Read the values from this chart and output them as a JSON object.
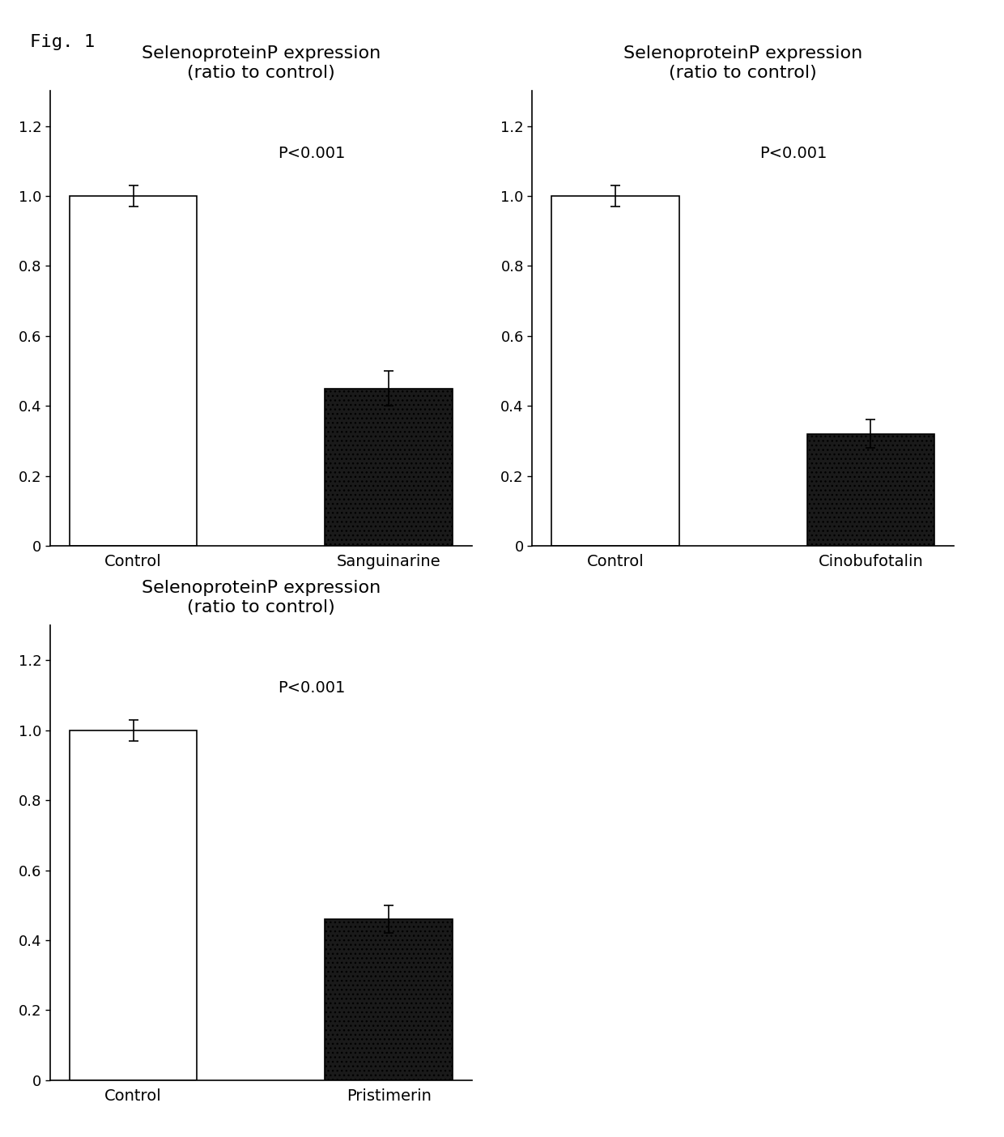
{
  "fig_label": "Fig. 1",
  "charts": [
    {
      "title": "SelenoproteinP expression\n(ratio to control)",
      "categories": [
        "Control",
        "Sanguinarine"
      ],
      "values": [
        1.0,
        0.45
      ],
      "errors": [
        0.03,
        0.05
      ],
      "bar_colors": [
        "#ffffff",
        "#1a1a1a"
      ],
      "bar_edgecolors": [
        "#000000",
        "#000000"
      ],
      "pvalue": "P<0.001",
      "ylim": [
        0,
        1.3
      ],
      "yticks": [
        0,
        0.2,
        0.4,
        0.6,
        0.8,
        1.0,
        1.2
      ]
    },
    {
      "title": "SelenoproteinP expression\n(ratio to control)",
      "categories": [
        "Control",
        "Cinobufotalin"
      ],
      "values": [
        1.0,
        0.32
      ],
      "errors": [
        0.03,
        0.04
      ],
      "bar_colors": [
        "#ffffff",
        "#1a1a1a"
      ],
      "bar_edgecolors": [
        "#000000",
        "#000000"
      ],
      "pvalue": "P<0.001",
      "ylim": [
        0,
        1.3
      ],
      "yticks": [
        0,
        0.2,
        0.4,
        0.6,
        0.8,
        1.0,
        1.2
      ]
    },
    {
      "title": "SelenoproteinP expression\n(ratio to control)",
      "categories": [
        "Control",
        "Pristimerin"
      ],
      "values": [
        1.0,
        0.46
      ],
      "errors": [
        0.03,
        0.04
      ],
      "bar_colors": [
        "#ffffff",
        "#1a1a1a"
      ],
      "bar_edgecolors": [
        "#000000",
        "#000000"
      ],
      "pvalue": "P<0.001",
      "ylim": [
        0,
        1.3
      ],
      "yticks": [
        0,
        0.2,
        0.4,
        0.6,
        0.8,
        1.0,
        1.2
      ]
    }
  ],
  "background_color": "#ffffff",
  "title_fontsize": 16,
  "tick_fontsize": 13,
  "label_fontsize": 14,
  "pvalue_fontsize": 14,
  "fig_label_fontsize": 16,
  "bar_width": 0.5
}
